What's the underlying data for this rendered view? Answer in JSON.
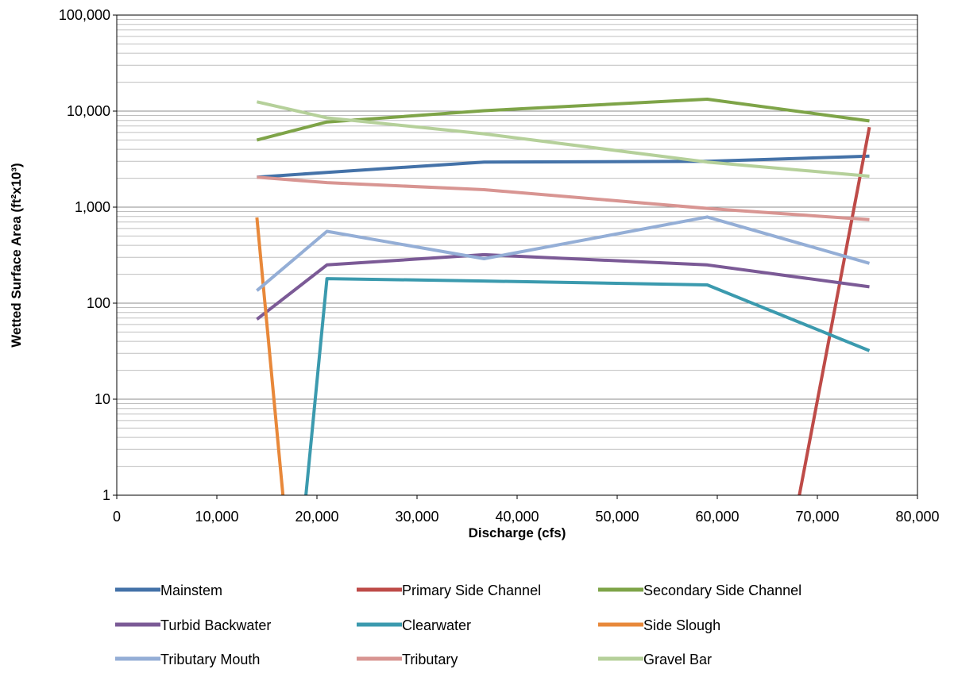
{
  "chart_data": {
    "type": "line",
    "title": "",
    "xlabel": "Discharge (cfs)",
    "ylabel": "Wetted Surface Area (ft²x10³)",
    "xlim": [
      0,
      80000
    ],
    "ylim": [
      1,
      100000
    ],
    "yscale": "log",
    "grid": "horizontal major and minor",
    "legend_position": "bottom",
    "x_ticks": [
      "0",
      "10,000",
      "20,000",
      "30,000",
      "40,000",
      "50,000",
      "60,000",
      "70,000",
      "80,000"
    ],
    "y_ticks": [
      "1",
      "10",
      "100",
      "1,000",
      "10,000",
      "100,000"
    ],
    "series": [
      {
        "name": "Mainstem",
        "color": "#4472A8",
        "x": [
          14000,
          21000,
          36700,
          59000,
          75200
        ],
        "values": [
          2050,
          2300,
          2950,
          3000,
          3400
        ]
      },
      {
        "name": "Primary Side Channel",
        "color": "#BE4B48",
        "x": [
          68200,
          75200
        ],
        "values": [
          1,
          6800
        ]
      },
      {
        "name": "Secondary Side Channel",
        "color": "#7EA448",
        "x": [
          14000,
          21000,
          36700,
          59000,
          75200
        ],
        "values": [
          5000,
          7700,
          10100,
          13300,
          7900
        ]
      },
      {
        "name": "Turbid Backwater",
        "color": "#7B5A96",
        "x": [
          14000,
          21000,
          36700,
          59000,
          75200
        ],
        "values": [
          68,
          250,
          320,
          250,
          148
        ]
      },
      {
        "name": "Clearwater",
        "color": "#3B9AAE",
        "x": [
          18900,
          21000,
          36700,
          59000,
          75200
        ],
        "values": [
          1,
          180,
          170,
          155,
          32
        ]
      },
      {
        "name": "Side Slough",
        "color": "#E8883A",
        "x": [
          14000,
          16600
        ],
        "values": [
          780,
          1
        ]
      },
      {
        "name": "Tributary Mouth",
        "color": "#94AED6",
        "x": [
          14000,
          21000,
          36700,
          59000,
          75200
        ],
        "values": [
          135,
          560,
          290,
          790,
          260
        ]
      },
      {
        "name": "Tributary",
        "color": "#D89592",
        "x": [
          14000,
          21000,
          36700,
          59000,
          75200
        ],
        "values": [
          2050,
          1800,
          1520,
          970,
          740
        ]
      },
      {
        "name": "Gravel Bar",
        "color": "#B5D09A",
        "x": [
          14000,
          21000,
          36700,
          59000,
          75200
        ],
        "values": [
          12500,
          8500,
          5800,
          2950,
          2100
        ]
      }
    ]
  }
}
